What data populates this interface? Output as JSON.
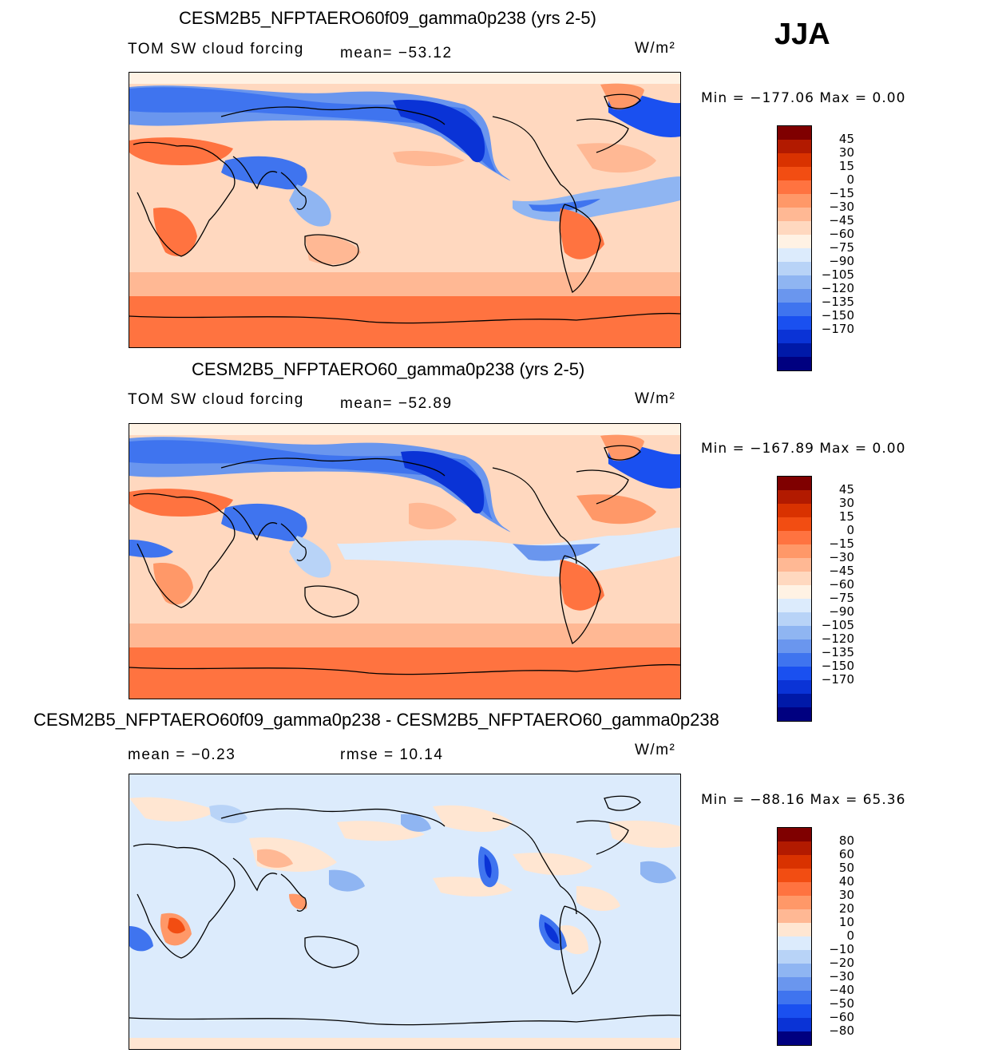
{
  "season": "JJA",
  "panels": [
    {
      "title": "CESM2B5_NFPTAERO60f09_gamma0p238 (yrs 2-5)",
      "field": "TOM SW cloud forcing",
      "stat1": "mean=  −53.12",
      "stat2": "",
      "units": "W/m²",
      "minmax": "Min  =  −177.06  Max  =      0.00",
      "cbar_labels": [
        "45",
        "30",
        "15",
        "0",
        "−15",
        "−30",
        "−45",
        "−60",
        "−75",
        "−90",
        "−105",
        "−120",
        "−135",
        "−150",
        "−170"
      ],
      "cbar_colors": [
        "#7f0000",
        "#b21a00",
        "#d93200",
        "#f24d12",
        "#ff7340",
        "#ff9868",
        "#ffb894",
        "#ffd8bf",
        "#fff2e4",
        "#dcebfc",
        "#b8d3f7",
        "#8fb5f2",
        "#6a96ee",
        "#3f74ef",
        "#1a50f0",
        "#0a33d6",
        "#0019a8",
        "#000080"
      ]
    },
    {
      "title": "CESM2B5_NFPTAERO60_gamma0p238 (yrs 2-5)",
      "field": "TOM SW cloud forcing",
      "stat1": "mean=  −52.89",
      "stat2": "",
      "units": "W/m²",
      "minmax": "Min  =  −167.89  Max  =      0.00",
      "cbar_labels": [
        "45",
        "30",
        "15",
        "0",
        "−15",
        "−30",
        "−45",
        "−60",
        "−75",
        "−90",
        "−105",
        "−120",
        "−135",
        "−150",
        "−170"
      ],
      "cbar_colors": [
        "#7f0000",
        "#b21a00",
        "#d93200",
        "#f24d12",
        "#ff7340",
        "#ff9868",
        "#ffb894",
        "#ffd8bf",
        "#fff2e4",
        "#dcebfc",
        "#b8d3f7",
        "#8fb5f2",
        "#6a96ee",
        "#3f74ef",
        "#1a50f0",
        "#0a33d6",
        "#0019a8",
        "#000080"
      ]
    },
    {
      "title": "CESM2B5_NFPTAERO60f09_gamma0p238 - CESM2B5_NFPTAERO60_gamma0p238",
      "field": "",
      "stat1": "mean  =     −0.23",
      "stat2": "rmse  =     10.14",
      "units": "W/m²",
      "minmax": "Min  =  −88.16  Max  =     65.36",
      "cbar_labels": [
        "80",
        "60",
        "50",
        "40",
        "30",
        "20",
        "10",
        "0",
        "−10",
        "−20",
        "−30",
        "−40",
        "−50",
        "−60",
        "−80"
      ],
      "cbar_colors": [
        "#7f0000",
        "#b21a00",
        "#d93200",
        "#f24d12",
        "#ff7340",
        "#ff9868",
        "#ffb894",
        "#ffe6d2",
        "#dcebfc",
        "#b8d3f7",
        "#8fb5f2",
        "#6a96ee",
        "#3f74ef",
        "#1a50f0",
        "#0a33d6",
        "#000080"
      ]
    }
  ]
}
